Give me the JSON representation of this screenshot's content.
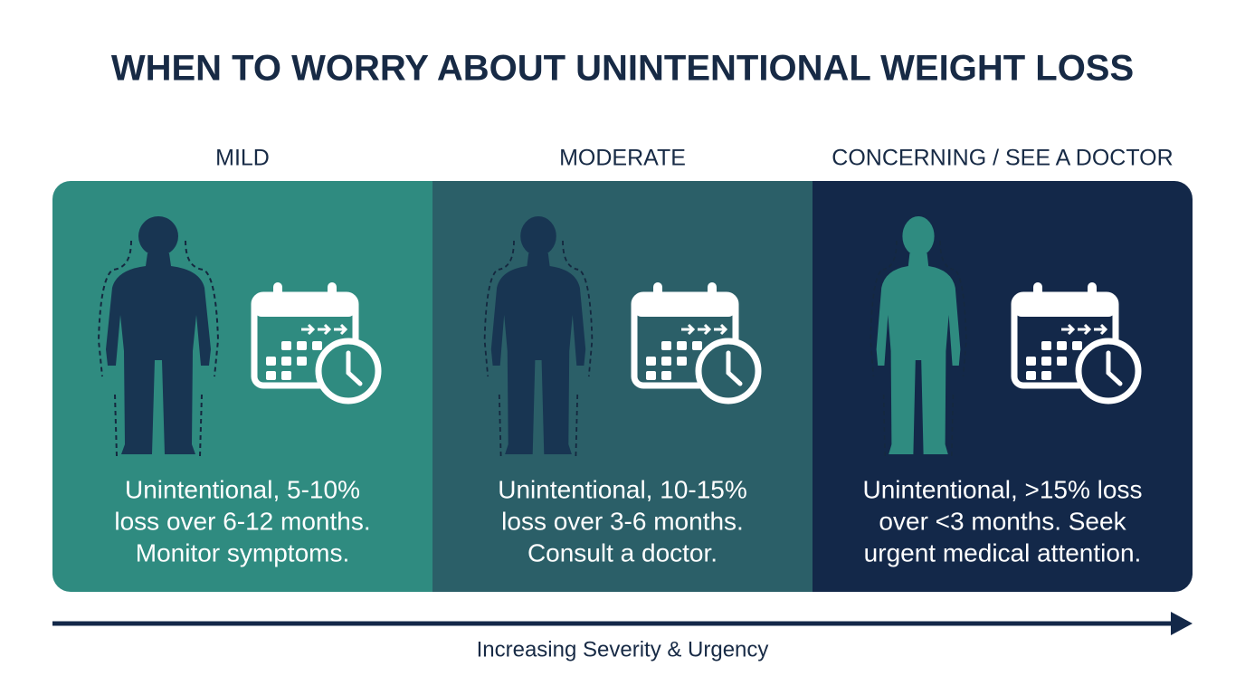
{
  "title": "WHEN TO WORRY ABOUT UNINTENTIONAL WEIGHT LOSS",
  "panels": [
    {
      "heading": "MILD",
      "lines": [
        "Unintentional, 5-10%",
        "loss over 6-12 months.",
        "Monitor symptoms."
      ]
    },
    {
      "heading": "MODERATE",
      "lines": [
        "Unintentional, 10-15%",
        "loss over 3-6 months.",
        "Consult a doctor."
      ]
    },
    {
      "heading": "CONCERNING / SEE A DOCTOR",
      "lines": [
        "Unintentional, >15% loss",
        "over <3 months. Seek",
        "urgent medical attention."
      ]
    }
  ],
  "footer": "Increasing Severity & Urgency"
}
